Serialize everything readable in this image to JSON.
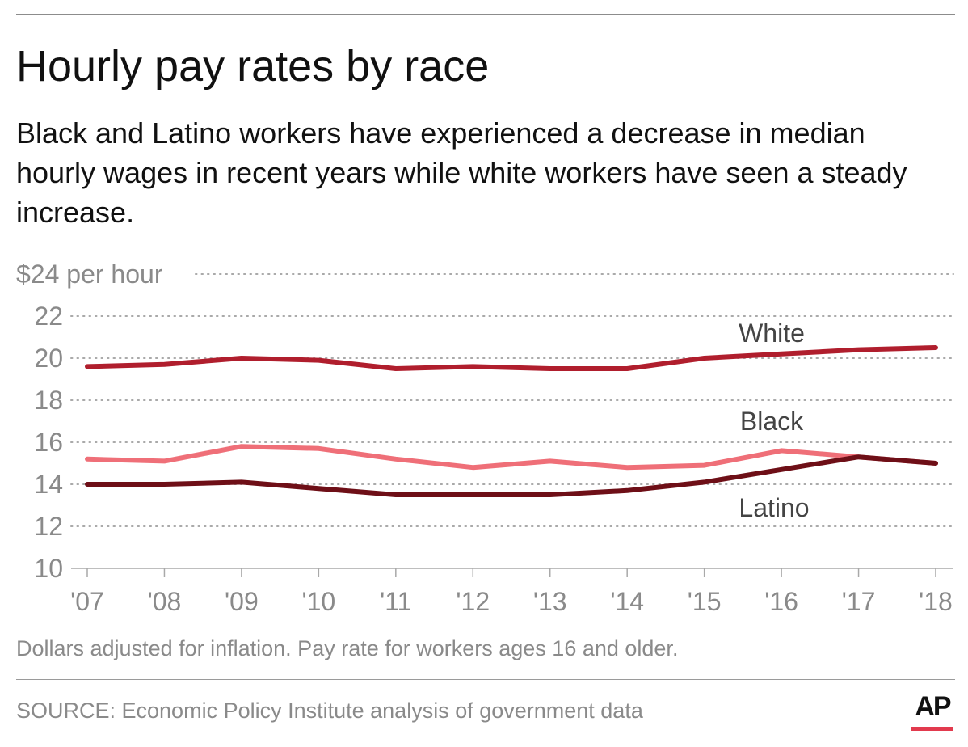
{
  "header": {
    "title": "Hourly pay rates by race",
    "subtitle": "Black and Latino workers have experienced a decrease in median hourly wages in recent years while white workers have seen a steady increase."
  },
  "footer": {
    "note": "Dollars adjusted for inflation. Pay rate for workers ages 16 and older.",
    "source": "SOURCE: Economic Policy Institute analysis of government data",
    "logo": "AP"
  },
  "colors": {
    "white_series": "#b01e2d",
    "black_series": "#ef6f78",
    "latino_series": "#6e0f17",
    "grid": "#a9a9a9",
    "tick_text": "#8a8a8a",
    "label_text": "#444444",
    "logo_accent": "#e23a4e"
  },
  "chart_data": {
    "type": "line",
    "title": "Hourly pay rates by race",
    "ylabel": "",
    "xlabel": "",
    "ylim": [
      10,
      24
    ],
    "y_ticks": [
      10,
      12,
      14,
      16,
      18,
      20,
      22,
      24
    ],
    "y_tick_labels": [
      "10",
      "12",
      "14",
      "16",
      "18",
      "20",
      "22",
      "$24 per hour"
    ],
    "categories": [
      "'07",
      "'08",
      "'09",
      "'10",
      "'11",
      "'12",
      "'13",
      "'14",
      "'15",
      "'16",
      "'17",
      "'18"
    ],
    "grid": true,
    "series": [
      {
        "name": "White",
        "values": [
          19.6,
          19.7,
          20.0,
          19.9,
          19.5,
          19.6,
          19.5,
          19.5,
          20.0,
          20.2,
          20.4,
          20.5
        ]
      },
      {
        "name": "Black",
        "values": [
          15.2,
          15.1,
          15.8,
          15.7,
          15.2,
          14.8,
          15.1,
          14.8,
          14.9,
          15.6,
          15.3,
          15.0
        ]
      },
      {
        "name": "Latino",
        "values": [
          14.0,
          14.0,
          14.1,
          13.8,
          13.5,
          13.5,
          13.5,
          13.7,
          14.1,
          14.7,
          15.3,
          15.0
        ]
      }
    ]
  }
}
